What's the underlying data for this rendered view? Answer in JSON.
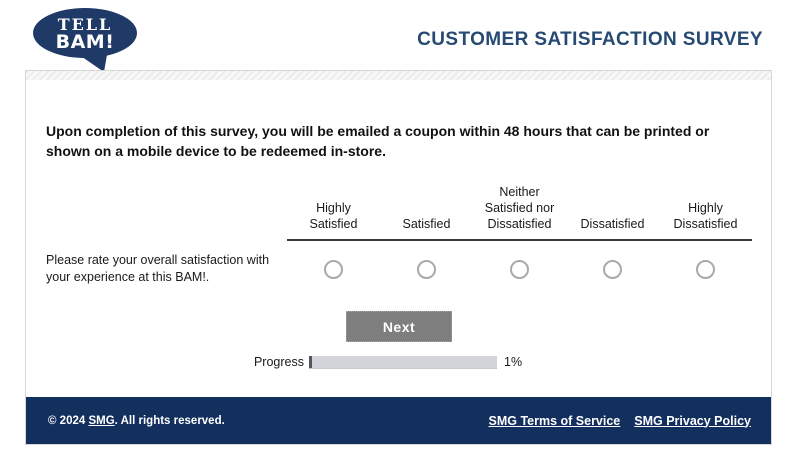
{
  "header": {
    "logo": {
      "line1": "TELL",
      "line2": "BAM!"
    },
    "title": "CUSTOMER SATISFACTION SURVEY"
  },
  "survey": {
    "intro": "Upon completion of this survey, you will be emailed a coupon within 48 hours that can be printed or shown on a mobile device to be redeemed in-store.",
    "question": "Please rate your overall satisfaction with your experience at this BAM!.",
    "scale": [
      "Highly Satisfied",
      "Satisfied",
      "Neither Satisfied nor Dissatisfied",
      "Dissatisfied",
      "Highly Dissatisfied"
    ],
    "next_label": "Next",
    "progress": {
      "label": "Progress",
      "percent": 1,
      "value_text": "1%"
    }
  },
  "footer": {
    "copyright_prefix": "© 2024 ",
    "copyright_link": "SMG",
    "copyright_suffix": ". All rights reserved.",
    "links": [
      "SMG Terms of Service",
      "SMG Privacy Policy"
    ]
  },
  "colors": {
    "brand_navy": "#132f5e",
    "logo_navy": "#203a68",
    "title_navy": "#264a73",
    "button_gray": "#7e7e7e",
    "progress_track": "#d3d4da",
    "progress_fill": "#54565e",
    "radio_border": "#a9a9a9"
  }
}
